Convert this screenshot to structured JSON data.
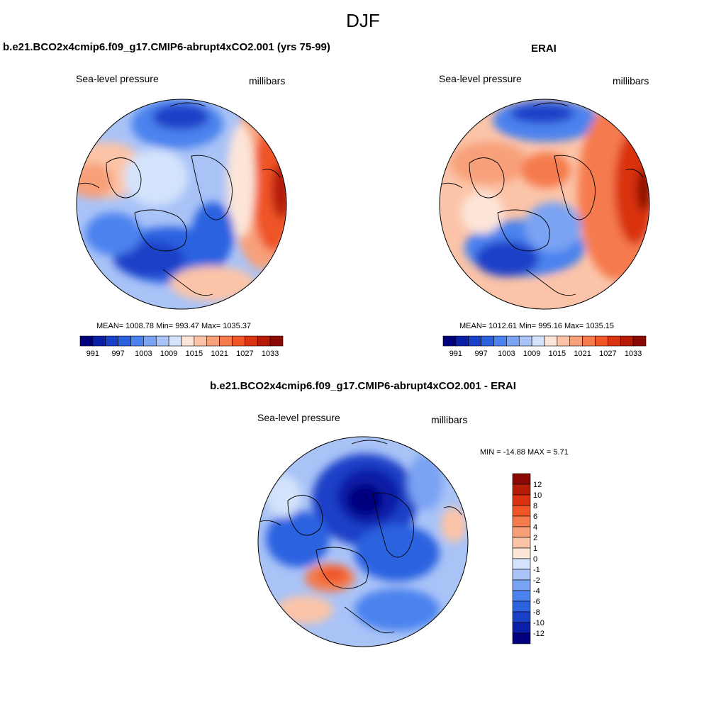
{
  "figure": {
    "season": "DJF",
    "variable": "Sea-level pressure",
    "units": "millibars"
  },
  "colors": {
    "abs_levels": [
      "#00007f",
      "#0a1fa6",
      "#1a40c8",
      "#2c62e0",
      "#4b82ee",
      "#7aa3f3",
      "#a9c3f7",
      "#d3e3fb",
      "#fde5d8",
      "#fbc4a8",
      "#f8a07a",
      "#f57a4e",
      "#ef5527",
      "#d93310",
      "#b51b07",
      "#8a0a03"
    ],
    "diff_levels": [
      "#00007f",
      "#0a1fa6",
      "#1a40c8",
      "#2c62e0",
      "#4b82ee",
      "#7aa3f3",
      "#a9c3f7",
      "#d3e3fb",
      "#fde5d8",
      "#fbc4a8",
      "#f8a07a",
      "#f57a4e",
      "#ef5527",
      "#d93310",
      "#b51b07",
      "#8a0a03"
    ]
  },
  "chart_data": [
    {
      "type": "heatmap",
      "projection": "north-polar-stereographic",
      "title": "b.e21.BCO2x4cmip6.f09_g17.CMIP6-abrupt4xCO2.001 (yrs 75-99)",
      "left_label": "Sea-level pressure",
      "right_label": "millibars",
      "stats": {
        "mean": "1008.78",
        "min": "993.47",
        "max": "1035.37"
      },
      "stats_text": "MEAN= 1008.78  Min= 993.47  Max= 1035.37",
      "colorbar_ticks": [
        "991",
        "997",
        "1003",
        "1009",
        "1015",
        "1021",
        "1027",
        "1033"
      ]
    },
    {
      "type": "heatmap",
      "projection": "north-polar-stereographic",
      "title": "ERAI",
      "left_label": "Sea-level pressure",
      "right_label": "millibars",
      "stats": {
        "mean": "1012.61",
        "min": "995.16",
        "max": "1035.15"
      },
      "stats_text": "MEAN= 1012.61  Min= 995.16  Max= 1035.15",
      "colorbar_ticks": [
        "991",
        "997",
        "1003",
        "1009",
        "1015",
        "1021",
        "1027",
        "1033"
      ]
    },
    {
      "type": "heatmap",
      "projection": "north-polar-stereographic",
      "title": "b.e21.BCO2x4cmip6.f09_g17.CMIP6-abrupt4xCO2.001 - ERAI",
      "left_label": "Sea-level pressure",
      "right_label": "millibars",
      "stats": {
        "min": "-14.88",
        "max": "5.71"
      },
      "stats_text": "MIN = -14.88 MAX =   5.71",
      "colorbar_ticks": [
        "12",
        "10",
        "8",
        "6",
        "4",
        "2",
        "1",
        "0",
        "-1",
        "-2",
        "-4",
        "-6",
        "-8",
        "-10",
        "-12"
      ]
    }
  ]
}
